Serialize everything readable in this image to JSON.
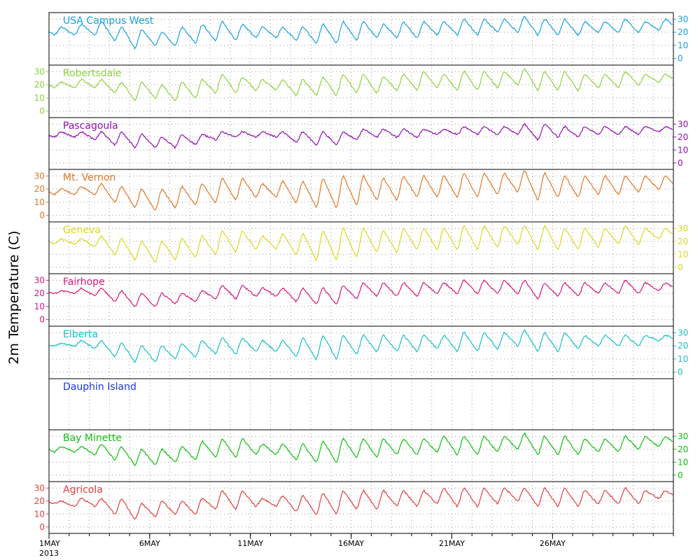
{
  "chart_data": {
    "type": "line",
    "ylabel": "2m Temperature (C)",
    "x_axis": {
      "start_date": "2013-05-01",
      "end_date": "2013-05-31",
      "ticks": [
        {
          "date": "2013-05-01",
          "label": "1MAY"
        },
        {
          "date": "2013-05-06",
          "label": "6MAY"
        },
        {
          "date": "2013-05-11",
          "label": "11MAY"
        },
        {
          "date": "2013-05-16",
          "label": "16MAY"
        },
        {
          "date": "2013-05-21",
          "label": "21MAY"
        },
        {
          "date": "2013-05-26",
          "label": "26MAY"
        }
      ],
      "year_label": "2013"
    },
    "grid": true,
    "panels": [
      {
        "name": "USA Campus West",
        "color": "#1aa0e0",
        "y_ticks": [
          0,
          10,
          20,
          30
        ],
        "axis_side": "right",
        "daily_max": [
          24,
          26,
          28,
          24,
          22,
          20,
          24,
          26,
          28,
          26,
          24,
          24,
          24,
          26,
          28,
          28,
          26,
          28,
          28,
          28,
          30,
          30,
          30,
          32,
          30,
          30,
          28,
          28,
          30,
          28,
          30
        ],
        "daily_min": [
          18,
          18,
          18,
          14,
          8,
          10,
          10,
          12,
          14,
          14,
          16,
          16,
          14,
          12,
          12,
          14,
          16,
          16,
          16,
          18,
          18,
          18,
          20,
          20,
          18,
          18,
          18,
          20,
          20,
          20,
          22
        ]
      },
      {
        "name": "Robertsdale",
        "color": "#8ed23c",
        "y_ticks": [
          0,
          10,
          20,
          30
        ],
        "axis_side": "left",
        "daily_max": [
          22,
          24,
          24,
          22,
          22,
          20,
          22,
          24,
          28,
          26,
          24,
          24,
          24,
          26,
          28,
          28,
          26,
          28,
          30,
          28,
          30,
          30,
          30,
          32,
          30,
          30,
          28,
          28,
          30,
          28,
          28
        ],
        "daily_min": [
          18,
          18,
          18,
          14,
          8,
          10,
          8,
          10,
          14,
          14,
          16,
          16,
          12,
          12,
          12,
          14,
          14,
          16,
          16,
          18,
          16,
          16,
          18,
          20,
          16,
          16,
          16,
          18,
          18,
          20,
          22
        ]
      },
      {
        "name": "Pascagoula",
        "color": "#9010b0",
        "y_ticks": [
          0,
          10,
          20,
          30
        ],
        "axis_side": "right",
        "daily_max": [
          24,
          24,
          24,
          24,
          22,
          20,
          22,
          22,
          24,
          24,
          24,
          24,
          24,
          24,
          24,
          26,
          26,
          26,
          26,
          26,
          28,
          28,
          28,
          30,
          30,
          28,
          28,
          28,
          28,
          28,
          28
        ],
        "daily_min": [
          20,
          20,
          18,
          14,
          12,
          12,
          12,
          14,
          18,
          20,
          20,
          20,
          16,
          14,
          14,
          18,
          20,
          20,
          20,
          22,
          22,
          22,
          22,
          22,
          18,
          20,
          20,
          22,
          22,
          22,
          24
        ]
      },
      {
        "name": "Mt. Vernon",
        "color": "#e07828",
        "y_ticks": [
          0,
          10,
          20,
          30
        ],
        "axis_side": "left",
        "daily_max": [
          20,
          22,
          24,
          22,
          20,
          20,
          22,
          24,
          28,
          28,
          24,
          26,
          26,
          28,
          30,
          30,
          28,
          30,
          30,
          30,
          32,
          32,
          32,
          34,
          32,
          30,
          30,
          30,
          30,
          30,
          30
        ],
        "daily_min": [
          16,
          16,
          16,
          10,
          6,
          4,
          6,
          8,
          10,
          12,
          14,
          14,
          10,
          6,
          6,
          8,
          12,
          12,
          14,
          14,
          14,
          14,
          16,
          18,
          12,
          14,
          14,
          16,
          16,
          18,
          20
        ]
      },
      {
        "name": "Geneva",
        "color": "#dcd820",
        "y_ticks": [
          0,
          10,
          20,
          30
        ],
        "axis_side": "right",
        "daily_max": [
          22,
          22,
          24,
          22,
          20,
          20,
          22,
          24,
          28,
          28,
          24,
          26,
          26,
          28,
          30,
          30,
          28,
          30,
          30,
          30,
          32,
          32,
          32,
          32,
          32,
          30,
          30,
          30,
          32,
          30,
          30
        ],
        "daily_min": [
          18,
          18,
          16,
          10,
          6,
          4,
          6,
          8,
          10,
          12,
          14,
          14,
          10,
          6,
          6,
          8,
          12,
          12,
          14,
          14,
          14,
          14,
          16,
          18,
          14,
          14,
          14,
          16,
          18,
          18,
          22
        ]
      },
      {
        "name": "Fairhope",
        "color": "#d81878",
        "y_ticks": [
          0,
          10,
          20,
          30
        ],
        "axis_side": "left",
        "daily_max": [
          22,
          24,
          24,
          22,
          20,
          20,
          20,
          22,
          26,
          26,
          24,
          24,
          24,
          24,
          26,
          28,
          28,
          28,
          28,
          28,
          30,
          30,
          30,
          30,
          28,
          28,
          28,
          28,
          30,
          28,
          28
        ],
        "daily_min": [
          20,
          20,
          18,
          14,
          10,
          10,
          12,
          14,
          16,
          16,
          18,
          18,
          14,
          12,
          12,
          16,
          18,
          18,
          18,
          20,
          20,
          20,
          20,
          20,
          16,
          18,
          18,
          20,
          20,
          20,
          22
        ]
      },
      {
        "name": "Elberta",
        "color": "#18c0c8",
        "y_ticks": [
          0,
          10,
          20,
          30
        ],
        "axis_side": "right",
        "daily_max": [
          22,
          24,
          24,
          22,
          20,
          20,
          22,
          24,
          26,
          26,
          24,
          24,
          26,
          28,
          28,
          28,
          28,
          28,
          28,
          28,
          30,
          30,
          30,
          32,
          30,
          30,
          28,
          28,
          28,
          28,
          28
        ],
        "daily_min": [
          20,
          20,
          18,
          12,
          8,
          8,
          10,
          12,
          14,
          14,
          16,
          16,
          12,
          10,
          10,
          14,
          16,
          16,
          16,
          18,
          16,
          16,
          18,
          20,
          16,
          16,
          18,
          20,
          20,
          20,
          24
        ]
      },
      {
        "name": "Dauphin Island",
        "color": "#1838e0",
        "y_ticks": [],
        "axis_side": "none",
        "daily_max": [],
        "daily_min": []
      },
      {
        "name": "Bay Minette",
        "color": "#10c010",
        "y_ticks": [
          0,
          10,
          20,
          30
        ],
        "axis_side": "right",
        "daily_max": [
          22,
          22,
          24,
          22,
          20,
          20,
          22,
          26,
          28,
          28,
          24,
          24,
          24,
          26,
          28,
          28,
          28,
          28,
          28,
          30,
          30,
          30,
          30,
          32,
          30,
          30,
          28,
          28,
          30,
          30,
          30
        ],
        "daily_min": [
          18,
          18,
          16,
          12,
          8,
          8,
          10,
          12,
          14,
          14,
          16,
          16,
          12,
          10,
          10,
          14,
          14,
          16,
          16,
          18,
          16,
          16,
          18,
          20,
          16,
          16,
          16,
          18,
          18,
          20,
          22
        ]
      },
      {
        "name": "Agricola",
        "color": "#e04040",
        "y_ticks": [
          0,
          10,
          20,
          30
        ],
        "axis_side": "left",
        "daily_max": [
          20,
          22,
          22,
          22,
          18,
          20,
          20,
          22,
          28,
          28,
          22,
          24,
          24,
          26,
          28,
          28,
          28,
          28,
          28,
          30,
          30,
          30,
          30,
          30,
          30,
          30,
          28,
          28,
          30,
          28,
          28
        ],
        "daily_min": [
          18,
          16,
          16,
          10,
          6,
          8,
          10,
          10,
          14,
          14,
          16,
          16,
          12,
          10,
          10,
          14,
          14,
          16,
          16,
          18,
          16,
          16,
          18,
          20,
          16,
          16,
          16,
          18,
          18,
          18,
          22
        ]
      }
    ]
  }
}
